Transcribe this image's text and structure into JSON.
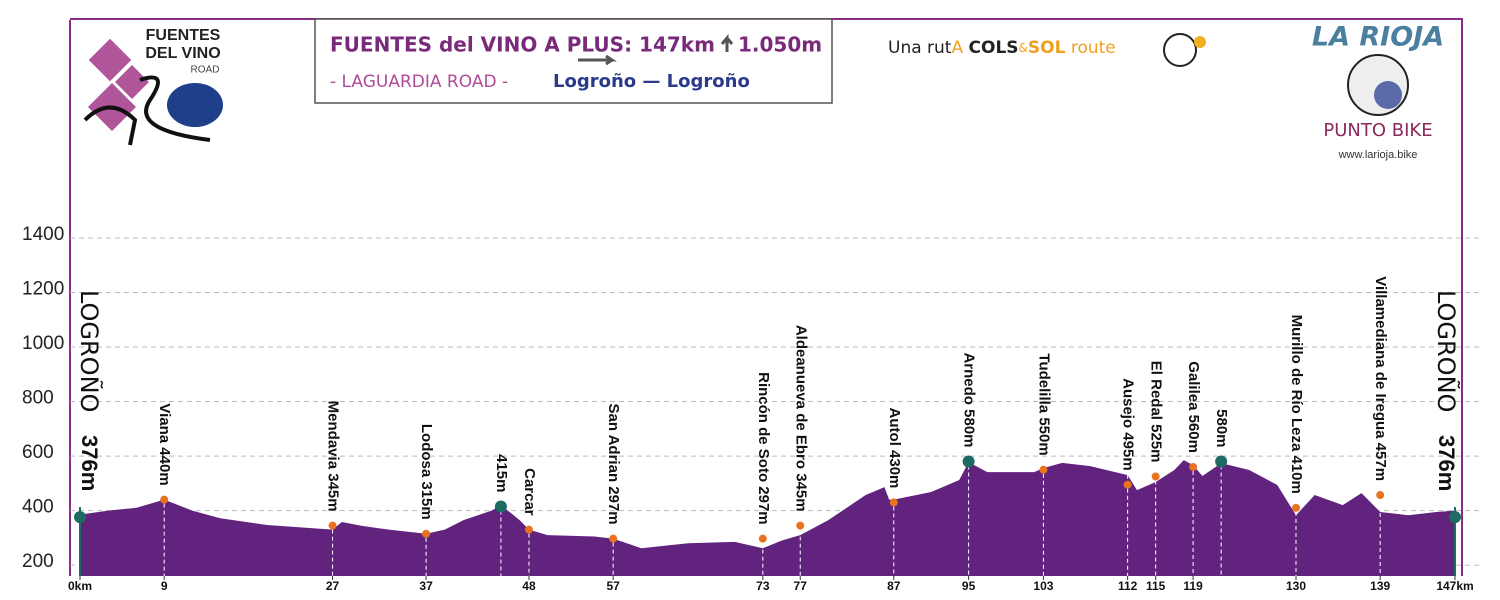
{
  "header": {
    "logo": {
      "line1": "FUENTES",
      "line2": "DEL VINO",
      "line3": "ROAD"
    },
    "title": "FUENTES del VINO A PLUS: 147km",
    "climb": "1.050m",
    "subtitle": "- LAGUARDIA ROAD -",
    "route": "Logroño — Logroño",
    "tagline": {
      "p1": "Una rut",
      "p2": "A",
      "p3": "COLS",
      "p4": "&",
      "p5": "SOL",
      "p6": "route"
    },
    "brand": "LA RIOJA",
    "brand_sub": "PUNTO BIKE",
    "url": "www.larioja.bike"
  },
  "chart_data": {
    "type": "area",
    "color": "#62237f",
    "grid": true,
    "x": [
      0,
      3,
      6,
      9,
      12,
      15,
      20,
      27,
      28,
      30,
      33,
      37,
      39,
      41,
      44,
      45,
      47,
      48,
      50,
      55,
      57,
      60,
      65,
      70,
      73,
      75,
      77,
      80,
      84,
      86,
      86.5,
      87,
      91,
      94,
      95,
      97,
      102,
      103,
      105,
      108,
      112,
      113,
      115,
      117,
      118,
      119,
      120,
      122,
      125,
      128,
      130,
      132,
      135,
      137,
      139,
      142,
      145,
      147
    ],
    "values": [
      385,
      400,
      410,
      440,
      400,
      372,
      347,
      330,
      358,
      345,
      330,
      315,
      330,
      365,
      400,
      420,
      365,
      330,
      310,
      305,
      297,
      262,
      280,
      285,
      262,
      290,
      310,
      365,
      457,
      486,
      440,
      440,
      468,
      512,
      578,
      541,
      541,
      556,
      575,
      563,
      530,
      475,
      505,
      549,
      585,
      567,
      527,
      574,
      549,
      494,
      383,
      457,
      420,
      464,
      395,
      383,
      395,
      400
    ],
    "xlim": [
      0,
      147
    ],
    "ylim": [
      160,
      1600
    ],
    "yticks": [
      200,
      400,
      600,
      800,
      1000,
      1200,
      1400
    ],
    "xticks": [
      {
        "value": 0,
        "label": "0km"
      },
      9,
      27,
      37,
      48,
      57,
      73,
      77,
      87,
      95,
      103,
      112,
      115,
      119,
      130,
      139,
      {
        "value": 147,
        "label": "147km"
      }
    ],
    "points": [
      {
        "x": 0,
        "y": 376,
        "label": "LOGROÑO",
        "sublabel": "376m",
        "color": "#1d6b63"
      },
      {
        "x": 9,
        "y": 440,
        "label": "Viana 440m",
        "color": "#e8731e"
      },
      {
        "x": 27,
        "y": 345,
        "label": "Mendavia 345m",
        "color": "#e8731e"
      },
      {
        "x": 37,
        "y": 315,
        "label": "Lodosa 315m",
        "color": "#e8731e"
      },
      {
        "x": 45,
        "y": 415,
        "label": "415m",
        "color": "#1d6b63"
      },
      {
        "x": 48,
        "y": 330,
        "label": "Carcar",
        "color": "#e8731e"
      },
      {
        "x": 57,
        "y": 297,
        "label": "San Adrian 297m",
        "color": "#e8731e"
      },
      {
        "x": 73,
        "y": 297,
        "label": "Rincón de Soto 297m",
        "color": "#e8731e"
      },
      {
        "x": 77,
        "y": 345,
        "label": "Aldeanueva de Ebro 345m",
        "color": "#e8731e"
      },
      {
        "x": 87,
        "y": 430,
        "label": "Autol 430m",
        "color": "#e8731e"
      },
      {
        "x": 95,
        "y": 580,
        "label": "Arnedo 580m",
        "color": "#1d6b63"
      },
      {
        "x": 103,
        "y": 550,
        "label": "Tudelilla 550m",
        "color": "#e8731e"
      },
      {
        "x": 112,
        "y": 495,
        "label": "Ausejo 495m",
        "color": "#e8731e"
      },
      {
        "x": 115,
        "y": 525,
        "label": "El Redal 525m",
        "color": "#e8731e"
      },
      {
        "x": 119,
        "y": 560,
        "label": "Galilea 560m",
        "color": "#e8731e"
      },
      {
        "x": 122,
        "y": 580,
        "label": "580m",
        "color": "#1d6b63"
      },
      {
        "x": 130,
        "y": 410,
        "label": "Murillo de Río Leza 410m",
        "color": "#e8731e"
      },
      {
        "x": 139,
        "y": 457,
        "label": "Villamediana de Iregua 457m",
        "color": "#e8731e"
      },
      {
        "x": 147,
        "y": 376,
        "label": "LOGROÑO",
        "sublabel": "376m",
        "color": "#1d6b63"
      }
    ]
  }
}
